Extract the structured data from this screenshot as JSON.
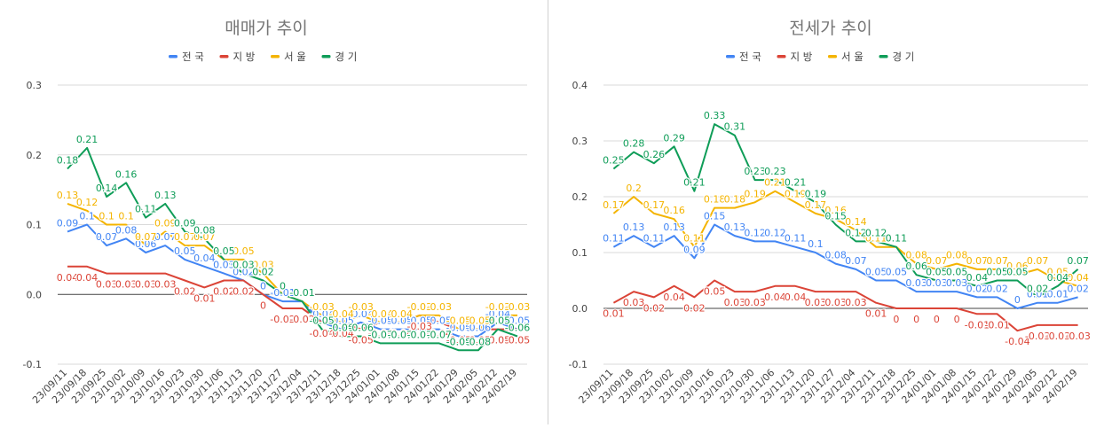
{
  "colors": {
    "전국": "#4285f4",
    "지방": "#db4437",
    "서울": "#f4b400",
    "경기": "#0f9d58"
  },
  "chart_data": [
    {
      "type": "line",
      "title": "매매가 추이",
      "legend_position": "top",
      "xlabel": "",
      "ylabel": "",
      "ylim": [
        -0.1,
        0.3
      ],
      "yticks": [
        "-0.1",
        "0.0",
        "0.1",
        "0.2",
        "0.3"
      ],
      "categories": [
        "23/09/11",
        "23/09/18",
        "23/09/25",
        "23/10/02",
        "23/10/09",
        "23/10/16",
        "23/10/23",
        "23/10/30",
        "23/11/06",
        "23/11/13",
        "23/11/20",
        "23/11/27",
        "23/12/04",
        "23/12/11",
        "23/12/18",
        "23/12/25",
        "24/01/01",
        "24/01/08",
        "24/01/15",
        "24/01/22",
        "24/01/29",
        "24/02/05",
        "24/02/12",
        "24/02/19"
      ],
      "series": [
        {
          "name": "전국",
          "values": [
            0.09,
            0.1,
            0.07,
            0.08,
            0.06,
            0.07,
            0.05,
            0.04,
            0.03,
            0.02,
            0.0,
            -0.01,
            -0.01,
            -0.04,
            -0.05,
            -0.04,
            -0.05,
            -0.05,
            -0.05,
            -0.05,
            -0.06,
            -0.06,
            -0.04,
            -0.05
          ]
        },
        {
          "name": "지방",
          "values": [
            0.04,
            0.04,
            0.03,
            0.03,
            0.03,
            0.03,
            0.02,
            0.01,
            0.02,
            0.02,
            0.0,
            -0.02,
            -0.02,
            -0.04,
            -0.04,
            -0.05,
            -0.04,
            -0.04,
            -0.03,
            -0.04,
            -0.05,
            -0.05,
            -0.05,
            -0.05
          ]
        },
        {
          "name": "서울",
          "values": [
            0.13,
            0.12,
            0.1,
            0.1,
            0.07,
            0.09,
            0.07,
            0.07,
            0.05,
            0.05,
            0.03,
            0.0,
            -0.01,
            -0.03,
            -0.04,
            -0.03,
            -0.04,
            -0.04,
            -0.03,
            -0.03,
            -0.05,
            -0.05,
            -0.03,
            -0.03
          ]
        },
        {
          "name": "경기",
          "values": [
            0.18,
            0.21,
            0.14,
            0.16,
            0.11,
            0.13,
            0.09,
            0.08,
            0.05,
            0.03,
            0.02,
            0.0,
            -0.01,
            -0.05,
            -0.06,
            -0.06,
            -0.07,
            -0.07,
            -0.07,
            -0.07,
            -0.08,
            -0.08,
            -0.05,
            -0.06
          ]
        }
      ]
    },
    {
      "type": "line",
      "title": "전세가 추이",
      "legend_position": "top",
      "xlabel": "",
      "ylabel": "",
      "ylim": [
        -0.1,
        0.4
      ],
      "yticks": [
        "-0.1",
        "0.0",
        "0.1",
        "0.2",
        "0.3",
        "0.4"
      ],
      "categories": [
        "23/09/11",
        "23/09/18",
        "23/09/25",
        "23/10/02",
        "23/10/09",
        "23/10/16",
        "23/10/23",
        "23/10/30",
        "23/11/06",
        "23/11/13",
        "23/11/20",
        "23/11/27",
        "23/12/04",
        "23/12/11",
        "23/12/18",
        "23/12/25",
        "24/01/01",
        "24/01/08",
        "24/01/15",
        "24/01/22",
        "24/01/29",
        "24/02/05",
        "24/02/12",
        "24/02/19"
      ],
      "series": [
        {
          "name": "전국",
          "values": [
            0.11,
            0.13,
            0.11,
            0.13,
            0.09,
            0.15,
            0.13,
            0.12,
            0.12,
            0.11,
            0.1,
            0.08,
            0.07,
            0.05,
            0.05,
            0.03,
            0.03,
            0.03,
            0.02,
            0.02,
            0.0,
            0.01,
            0.01,
            0.02
          ]
        },
        {
          "name": "지방",
          "values": [
            0.01,
            0.03,
            0.02,
            0.04,
            0.02,
            0.05,
            0.03,
            0.03,
            0.04,
            0.04,
            0.03,
            0.03,
            0.03,
            0.01,
            0.0,
            0.0,
            0.0,
            0.0,
            -0.01,
            -0.01,
            -0.04,
            -0.03,
            -0.03,
            -0.03
          ]
        },
        {
          "name": "서울",
          "values": [
            0.17,
            0.2,
            0.17,
            0.16,
            0.11,
            0.18,
            0.18,
            0.19,
            0.21,
            0.19,
            0.17,
            0.16,
            0.14,
            0.11,
            0.11,
            0.08,
            0.07,
            0.08,
            0.07,
            0.07,
            0.06,
            0.07,
            0.05,
            0.04
          ]
        },
        {
          "name": "경기",
          "values": [
            0.25,
            0.28,
            0.26,
            0.29,
            0.21,
            0.33,
            0.31,
            0.23,
            0.23,
            0.21,
            0.19,
            0.15,
            0.12,
            0.12,
            0.11,
            0.06,
            0.05,
            0.05,
            0.04,
            0.05,
            0.05,
            0.02,
            0.04,
            0.07
          ]
        }
      ]
    }
  ]
}
